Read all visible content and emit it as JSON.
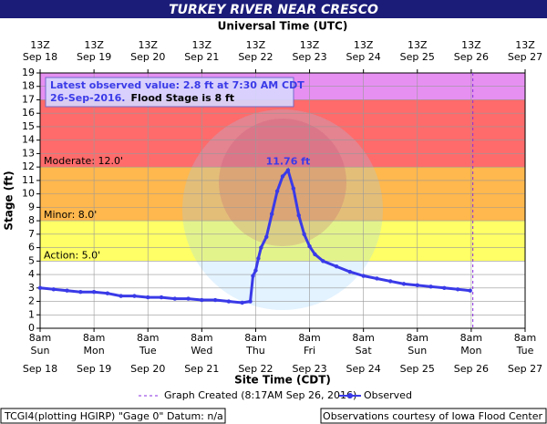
{
  "chart_data": {
    "type": "line",
    "title": "TURKEY RIVER NEAR CRESCO",
    "x2_axis_label": "Universal Time (UTC)",
    "x_axis_label": "Site Time (CDT)",
    "y_axis_label": "Stage (ft)",
    "xlim": [
      0,
      9
    ],
    "xticks": [
      {
        "value": 0,
        "label": "8am",
        "day": "Sun",
        "date": "Sep 18"
      },
      {
        "value": 1,
        "label": "8am",
        "day": "Mon",
        "date": "Sep 19"
      },
      {
        "value": 2,
        "label": "8am",
        "day": "Tue",
        "date": "Sep 20"
      },
      {
        "value": 3,
        "label": "8am",
        "day": "Wed",
        "date": "Sep 21"
      },
      {
        "value": 4,
        "label": "8am",
        "day": "Thu",
        "date": "Sep 22"
      },
      {
        "value": 5,
        "label": "8am",
        "day": "Fri",
        "date": "Sep 23"
      },
      {
        "value": 6,
        "label": "8am",
        "day": "Sat",
        "date": "Sep 24"
      },
      {
        "value": 7,
        "label": "8am",
        "day": "Sun",
        "date": "Sep 25"
      },
      {
        "value": 8,
        "label": "8am",
        "day": "Mon",
        "date": "Sep 26"
      },
      {
        "value": 9,
        "label": "8am",
        "day": "Tue",
        "date": "Sep 27"
      }
    ],
    "x2ticks": [
      {
        "value": 0,
        "label": "13Z",
        "date": "Sep 18"
      },
      {
        "value": 1,
        "label": "13Z",
        "date": "Sep 19"
      },
      {
        "value": 2,
        "label": "13Z",
        "date": "Sep 20"
      },
      {
        "value": 3,
        "label": "13Z",
        "date": "Sep 21"
      },
      {
        "value": 4,
        "label": "13Z",
        "date": "Sep 22"
      },
      {
        "value": 5,
        "label": "13Z",
        "date": "Sep 23"
      },
      {
        "value": 6,
        "label": "13Z",
        "date": "Sep 24"
      },
      {
        "value": 7,
        "label": "13Z",
        "date": "Sep 25"
      },
      {
        "value": 8,
        "label": "13Z",
        "date": "Sep 26"
      },
      {
        "value": 9,
        "label": "13Z",
        "date": "Sep 27"
      }
    ],
    "ylim": [
      0,
      19
    ],
    "yticks": [
      0,
      1,
      2,
      3,
      4,
      5,
      6,
      7,
      8,
      9,
      10,
      11,
      12,
      13,
      14,
      15,
      16,
      17,
      18,
      19
    ],
    "grid": true,
    "bands": [
      {
        "from": 17,
        "to": 19,
        "color": "#e690f2"
      },
      {
        "from": 12,
        "to": 17,
        "color": "#ff6b6b",
        "label": "Moderate: 12.0'"
      },
      {
        "from": 8,
        "to": 12,
        "color": "#ffb84d",
        "label": "Minor: 8.0'"
      },
      {
        "from": 5,
        "to": 8,
        "color": "#ffff66",
        "label": "Action: 5.0'"
      }
    ],
    "series": [
      {
        "name": "Observed",
        "color": "#3a3ae8",
        "x": [
          0,
          0.25,
          0.5,
          0.75,
          1.0,
          1.25,
          1.5,
          1.75,
          2.0,
          2.25,
          2.5,
          2.75,
          3.0,
          3.25,
          3.5,
          3.75,
          3.9,
          3.95,
          4.0,
          4.05,
          4.1,
          4.2,
          4.3,
          4.4,
          4.5,
          4.6,
          4.7,
          4.8,
          4.9,
          5.0,
          5.1,
          5.25,
          5.5,
          5.75,
          6.0,
          6.25,
          6.5,
          6.75,
          7.0,
          7.25,
          7.5,
          7.75,
          7.98
        ],
        "values": [
          3.0,
          2.9,
          2.8,
          2.7,
          2.7,
          2.6,
          2.4,
          2.4,
          2.3,
          2.3,
          2.2,
          2.2,
          2.1,
          2.1,
          2.0,
          1.9,
          2.0,
          3.9,
          4.3,
          5.2,
          6.0,
          6.8,
          8.5,
          10.2,
          11.3,
          11.76,
          10.4,
          8.4,
          7.0,
          6.1,
          5.5,
          5.0,
          4.6,
          4.2,
          3.9,
          3.7,
          3.5,
          3.3,
          3.2,
          3.1,
          3.0,
          2.9,
          2.8
        ]
      }
    ],
    "peak_label": "11.76 ft",
    "created_x": 8.03,
    "created_color": "#8a2be2",
    "created_label": "Graph Created (8:17AM Sep 26, 2016)",
    "annotation": {
      "line1": "Latest observed value: 2.8 ft at 7:30 AM CDT",
      "line2a": "26-Sep-2016.",
      "line2b": "Flood Stage is 8 ft"
    },
    "footer_left": "TCGI4(plotting HGIRP) \"Gage 0\" Datum: n/a",
    "footer_right": "Observations courtesy of Iowa Flood Center"
  }
}
